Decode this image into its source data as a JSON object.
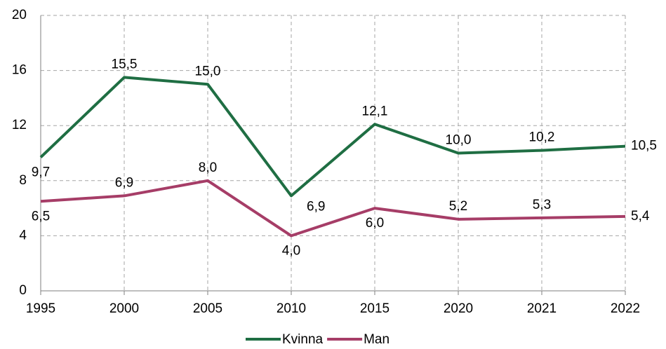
{
  "chart_data": {
    "type": "line",
    "categories": [
      "1995",
      "2000",
      "2005",
      "2010",
      "2015",
      "2020",
      "2021",
      "2022"
    ],
    "series": [
      {
        "name": "Kvinna",
        "color": "#1f6e43",
        "values": [
          9.7,
          15.5,
          15.0,
          6.9,
          12.1,
          10.0,
          10.2,
          10.5
        ],
        "value_labels": [
          "9,7",
          "15,5",
          "15,0",
          "6,9",
          "12,1",
          "10,0",
          "10,2",
          "10,5"
        ]
      },
      {
        "name": "Man",
        "color": "#a63d67",
        "values": [
          6.5,
          6.9,
          8.0,
          4.0,
          6.0,
          5.2,
          5.3,
          5.4
        ],
        "value_labels": [
          "6,5",
          "6,9",
          "8,0",
          "4,0",
          "6,0",
          "5,2",
          "5,3",
          "5,4"
        ]
      }
    ],
    "ylim": [
      0,
      20
    ],
    "yticks": [
      0,
      4,
      8,
      12,
      16,
      20
    ],
    "grid": true,
    "legend": "bottom"
  }
}
